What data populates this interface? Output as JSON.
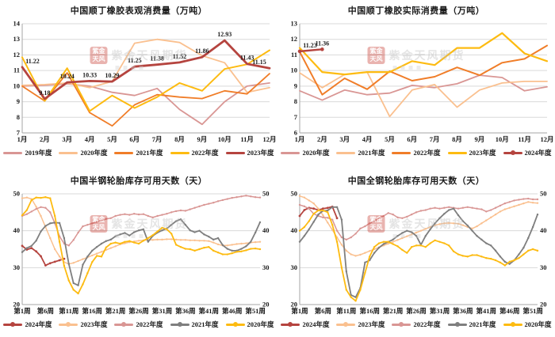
{
  "page": {
    "background": "#ffffff"
  },
  "watermark": {
    "seal_line1": "紫金",
    "seal_line2": "天风",
    "text": "紫金天风期货"
  },
  "chart_data": [
    {
      "type": "line",
      "title": "中国顺丁橡胶表观消费量（万吨）",
      "ylabel": "万吨",
      "ylim": [
        7,
        14
      ],
      "yticks": [
        7,
        8,
        9,
        10,
        11,
        12,
        13,
        14
      ],
      "right_axis": false,
      "n_points": 12,
      "x_ticks": [
        "1月",
        "2月",
        "3月",
        "4月",
        "5月",
        "6月",
        "7月",
        "8月",
        "9月",
        "10月",
        "11月",
        "12月"
      ],
      "legend_position": "bottom",
      "grid": "horizontal",
      "series": [
        {
          "name": "2019年度",
          "color": "#d99694",
          "width": 1.8,
          "marker": 0,
          "values": [
            10.0,
            10.05,
            10.15,
            10.0,
            9.6,
            9.4,
            9.85,
            8.5,
            7.55,
            9.0,
            10.0,
            10.2
          ]
        },
        {
          "name": "2020年度",
          "color": "#fac08f",
          "width": 1.8,
          "marker": 0,
          "values": [
            10.05,
            10.1,
            10.2,
            9.9,
            10.3,
            12.75,
            13.0,
            12.8,
            11.95,
            11.5,
            9.6,
            9.9
          ]
        },
        {
          "name": "2021年度",
          "color": "#f07d28",
          "width": 1.8,
          "marker": 0,
          "values": [
            10.0,
            9.05,
            10.85,
            8.3,
            7.45,
            8.8,
            9.45,
            9.3,
            9.2,
            9.7,
            9.5,
            10.8
          ]
        },
        {
          "name": "2022年度",
          "color": "#fdbb11",
          "width": 2.0,
          "marker": 0,
          "values": [
            11.85,
            9.05,
            11.15,
            8.4,
            9.4,
            8.6,
            9.3,
            10.2,
            9.7,
            11.1,
            11.4,
            12.3
          ]
        },
        {
          "name": "2023年度",
          "color": "#b5443f",
          "width": 2.8,
          "marker": 0,
          "values": [
            11.22,
            9.18,
            10.24,
            10.33,
            10.29,
            11.25,
            11.38,
            11.52,
            11.86,
            12.93,
            11.43,
            11.15
          ],
          "labels": [
            "11.22",
            "9.18",
            "10.24",
            "10.33",
            "10.29",
            "11.25",
            "11.38",
            "11.52",
            "11.86",
            "12.93",
            "11.43",
            "11.15"
          ]
        }
      ]
    },
    {
      "type": "line",
      "title": "中国顺丁橡胶实际消费量（万吨）",
      "ylabel": "万吨",
      "ylim": [
        6,
        13
      ],
      "yticks": [
        6,
        7,
        8,
        9,
        10,
        11,
        12,
        13
      ],
      "right_axis": false,
      "n_points": 12,
      "x_ticks": [
        "1月",
        "2月",
        "3月",
        "4月",
        "5月",
        "6月",
        "7月",
        "8月",
        "9月",
        "10月",
        "11月",
        "12月"
      ],
      "legend_position": "bottom",
      "grid": "horizontal",
      "series": [
        {
          "name": "2020年度",
          "color": "#d99694",
          "width": 1.8,
          "marker": 0,
          "values": [
            8.7,
            8.1,
            8.75,
            8.45,
            8.55,
            9.05,
            8.9,
            9.15,
            9.7,
            9.55,
            8.7,
            8.95
          ]
        },
        {
          "name": "2021年度",
          "color": "#fac08f",
          "width": 1.8,
          "marker": 0,
          "values": [
            9.85,
            8.9,
            9.75,
            9.9,
            7.05,
            8.75,
            9.1,
            7.65,
            8.75,
            9.2,
            9.3,
            9.3
          ]
        },
        {
          "name": "2022年度",
          "color": "#f07d28",
          "width": 2.0,
          "marker": 0,
          "values": [
            11.2,
            8.45,
            9.5,
            8.8,
            9.95,
            9.35,
            9.6,
            10.2,
            9.7,
            10.5,
            10.75,
            11.6
          ]
        },
        {
          "name": "2023年度",
          "color": "#fdbb11",
          "width": 2.2,
          "marker": 0,
          "values": [
            11.45,
            9.9,
            9.75,
            9.9,
            9.9,
            10.6,
            10.35,
            11.45,
            11.45,
            12.4,
            11.1,
            10.6
          ]
        },
        {
          "name": "2024年度",
          "color": "#b5443f",
          "width": 2.4,
          "marker": 2.3,
          "values": [
            11.23,
            11.36
          ],
          "labels": [
            "11.23",
            "11.36"
          ]
        }
      ]
    },
    {
      "type": "line",
      "title": "中国半钢轮胎库存可用天数（天）",
      "ylabel": "天",
      "ylim": [
        20,
        50
      ],
      "yticks": [
        20,
        30,
        40,
        50
      ],
      "right_axis": true,
      "n_points": 52,
      "x_ticks": [
        "第1周",
        "第6周",
        "第11周",
        "第16周",
        "第21周",
        "第26周",
        "第31周",
        "第36周",
        "第41周",
        "第46周",
        "第51周"
      ],
      "x_tick_positions": [
        0,
        5,
        10,
        15,
        20,
        25,
        30,
        35,
        40,
        45,
        50
      ],
      "legend_position": "bottom",
      "grid": "horizontal",
      "series": [
        {
          "name": "2024年度",
          "color": "#b5443f",
          "width": 1.8,
          "marker": 1.4,
          "values": [
            35.9,
            34.9,
            35.3,
            34.4,
            33.1,
            30.6,
            31.2,
            31.6,
            32.0,
            32.4
          ]
        },
        {
          "name": "2023年度",
          "color": "#fac08f",
          "width": 1.5,
          "marker": 1.2,
          "values": [
            48.8,
            49.0,
            48.6,
            46.5,
            44.0,
            41.0,
            38.0,
            35.0,
            33.0,
            31.5,
            31.0,
            31.3,
            31.8,
            32.3,
            32.8,
            33.3,
            33.8,
            34.3,
            34.8,
            35.3,
            35.8,
            36.3,
            36.6,
            36.9,
            37.1,
            37.3,
            37.4,
            37.5,
            37.5,
            37.6,
            37.6,
            37.7,
            37.7,
            37.6,
            37.5,
            37.5,
            37.4,
            37.4,
            37.3,
            37.3,
            37.2,
            36.8,
            36.3,
            36.0,
            36.0,
            36.2,
            36.4,
            36.5,
            36.6,
            36.8,
            36.9,
            37.0
          ]
        },
        {
          "name": "2022年度",
          "color": "#d99694",
          "width": 1.5,
          "marker": 1.2,
          "values": [
            44.0,
            44.5,
            45.2,
            45.9,
            46.4,
            46.2,
            45.0,
            42.0,
            38.5,
            36.5,
            36.0,
            37.5,
            39.5,
            41.2,
            41.6,
            42.0,
            42.4,
            42.8,
            43.2,
            43.4,
            44.0,
            44.3,
            44.5,
            44.3,
            44.6,
            44.4,
            44.5,
            44.0,
            43.6,
            44.0,
            44.3,
            44.6,
            45.0,
            45.3,
            45.5,
            45.4,
            45.8,
            46.2,
            46.6,
            47.0,
            47.3,
            47.6,
            48.0,
            48.3,
            48.6,
            48.9,
            49.1,
            49.3,
            49.5,
            49.3,
            49.1,
            49.0
          ]
        },
        {
          "name": "2021年度",
          "color": "#7f7f7f",
          "width": 1.8,
          "marker": 1.2,
          "values": [
            34.2,
            35.3,
            35.9,
            37.3,
            39.8,
            41.3,
            42.0,
            42.2,
            42.1,
            38.0,
            31.0,
            25.8,
            25.2,
            30.8,
            33.0,
            34.6,
            35.6,
            36.5,
            37.2,
            37.6,
            38.5,
            39.0,
            39.4,
            38.7,
            39.6,
            40.1,
            40.4,
            37.0,
            38.6,
            39.5,
            40.1,
            40.6,
            41.6,
            42.6,
            43.1,
            41.6,
            40.1,
            39.6,
            40.0,
            39.0,
            38.4,
            37.6,
            38.0,
            36.1,
            35.1,
            34.6,
            34.6,
            35.1,
            35.8,
            37.0,
            39.5,
            42.3
          ]
        },
        {
          "name": "2020年度",
          "color": "#fdbb11",
          "width": 1.8,
          "marker": 1.2,
          "values": [
            44.2,
            45.6,
            48.3,
            49.0,
            48.9,
            49.1,
            48.8,
            44.0,
            37.0,
            30.5,
            26.5,
            24.0,
            23.0,
            25.5,
            28.5,
            31.5,
            33.2,
            33.0,
            35.5,
            36.5,
            36.8,
            36.5,
            37.0,
            37.2,
            36.8,
            36.5,
            37.3,
            38.0,
            38.8,
            39.8,
            40.8,
            40.4,
            39.2,
            36.2,
            35.6,
            35.1,
            35.0,
            34.6,
            35.0,
            35.4,
            35.6,
            34.6,
            34.1,
            33.6,
            33.6,
            33.9,
            34.3,
            34.4,
            34.7,
            35.1,
            35.2,
            35.0
          ]
        }
      ]
    },
    {
      "type": "line",
      "title": "中国全钢轮胎库存可用天数（天）",
      "ylabel": "天",
      "ylim": [
        20,
        50
      ],
      "yticks": [
        20,
        30,
        40,
        50
      ],
      "right_axis": true,
      "n_points": 52,
      "x_ticks": [
        "第1周",
        "第6周",
        "第11周",
        "第16周",
        "第21周",
        "第26周",
        "第31周",
        "第36周",
        "第41周",
        "第46周",
        "第51周"
      ],
      "x_tick_positions": [
        0,
        5,
        10,
        15,
        20,
        25,
        30,
        35,
        40,
        45,
        50
      ],
      "legend_position": "bottom",
      "grid": "horizontal",
      "series": [
        {
          "name": "2024年度",
          "color": "#b5443f",
          "width": 1.8,
          "marker": 1.4,
          "values": [
            44.0,
            45.6,
            46.2,
            46.0,
            45.6,
            46.0,
            46.2,
            46.5,
            43.4
          ]
        },
        {
          "name": "2023年度",
          "color": "#fac08f",
          "width": 1.5,
          "marker": 1.2,
          "values": [
            49.4,
            49.0,
            48.2,
            47.4,
            46.0,
            44.2,
            42.2,
            40.2,
            38.2,
            36.2,
            34.6,
            33.6,
            33.2,
            33.5,
            34.0,
            34.5,
            35.0,
            35.5,
            36.0,
            36.5,
            37.0,
            37.5,
            38.0,
            38.5,
            39.0,
            39.5,
            40.0,
            40.5,
            41.0,
            41.5,
            41.8,
            42.0,
            42.1,
            42.0,
            41.9,
            41.5,
            41.0,
            40.6,
            41.2,
            42.0,
            42.8,
            43.6,
            44.4,
            45.2,
            45.8,
            46.2,
            46.6,
            47.0,
            47.4,
            47.8,
            47.6,
            47.5
          ]
        },
        {
          "name": "2022年度",
          "color": "#d99694",
          "width": 1.5,
          "marker": 1.2,
          "values": [
            47.0,
            46.6,
            46.0,
            44.6,
            44.0,
            43.6,
            43.5,
            43.0,
            40.0,
            38.2,
            37.6,
            38.2,
            39.2,
            40.6,
            41.2,
            42.0,
            42.6,
            43.4,
            44.0,
            44.8,
            44.4,
            43.6,
            43.4,
            43.8,
            44.4,
            45.0,
            45.4,
            45.6,
            46.0,
            46.2,
            46.0,
            46.2,
            46.4,
            46.2,
            46.0,
            46.2,
            46.4,
            46.2,
            46.0,
            45.8,
            45.2,
            45.6,
            46.2,
            46.8,
            47.4,
            47.8,
            48.2,
            48.4,
            48.6,
            48.7,
            48.5,
            48.5
          ]
        },
        {
          "name": "2021年度",
          "color": "#7f7f7f",
          "width": 1.8,
          "marker": 1.2,
          "values": [
            37.0,
            38.6,
            40.4,
            42.4,
            44.4,
            45.4,
            45.5,
            46.4,
            46.4,
            43.0,
            29.0,
            22.6,
            22.0,
            24.5,
            31.4,
            32.0,
            34.0,
            35.4,
            36.4,
            37.0,
            37.6,
            38.6,
            39.4,
            40.0,
            39.6,
            38.6,
            36.2,
            38.6,
            40.4,
            42.0,
            43.4,
            44.6,
            45.6,
            46.0,
            44.2,
            42.6,
            41.4,
            40.0,
            38.6,
            37.6,
            36.6,
            36.0,
            34.6,
            33.0,
            31.6,
            31.0,
            32.0,
            33.6,
            35.4,
            38.0,
            41.0,
            44.4
          ]
        },
        {
          "name": "2020年度",
          "color": "#fdbb11",
          "width": 1.8,
          "marker": 1.2,
          "values": [
            40.0,
            41.0,
            42.6,
            44.6,
            45.5,
            45.5,
            45.0,
            41.6,
            37.0,
            30.0,
            24.0,
            22.0,
            21.0,
            24.0,
            28.6,
            33.0,
            35.6,
            36.6,
            37.0,
            37.0,
            36.4,
            35.8,
            34.8,
            34.0,
            35.6,
            36.0,
            36.0,
            35.6,
            36.6,
            37.4,
            37.0,
            36.6,
            36.0,
            34.4,
            33.6,
            33.2,
            33.0,
            33.4,
            33.4,
            33.0,
            32.6,
            32.4,
            32.0,
            31.4,
            30.6,
            31.6,
            32.0,
            32.6,
            33.6,
            34.6,
            35.0,
            34.6
          ]
        }
      ]
    }
  ]
}
